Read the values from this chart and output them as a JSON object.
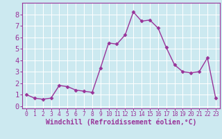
{
  "x": [
    0,
    1,
    2,
    3,
    4,
    5,
    6,
    7,
    8,
    9,
    10,
    11,
    12,
    13,
    14,
    15,
    16,
    17,
    18,
    19,
    20,
    21,
    22,
    23
  ],
  "y": [
    1.0,
    0.7,
    0.6,
    0.7,
    1.8,
    1.7,
    1.4,
    1.3,
    1.2,
    3.3,
    5.5,
    5.4,
    6.2,
    8.2,
    7.4,
    7.5,
    6.8,
    5.1,
    3.6,
    3.0,
    2.9,
    3.0,
    4.2,
    0.7
  ],
  "line_color": "#993399",
  "marker": "D",
  "marker_size": 2.5,
  "line_width": 1.0,
  "xlabel": "Windchill (Refroidissement éolien,°C)",
  "xlim": [
    -0.5,
    23.5
  ],
  "ylim": [
    -0.2,
    9.0
  ],
  "yticks": [
    0,
    1,
    2,
    3,
    4,
    5,
    6,
    7,
    8
  ],
  "xticks": [
    0,
    1,
    2,
    3,
    4,
    5,
    6,
    7,
    8,
    9,
    10,
    11,
    12,
    13,
    14,
    15,
    16,
    17,
    18,
    19,
    20,
    21,
    22,
    23
  ],
  "bg_color": "#cce9f0",
  "grid_color": "#ffffff",
  "tick_color": "#993399",
  "label_color": "#993399",
  "spine_color": "#993399",
  "xlabel_fontsize": 7.0,
  "ytick_fontsize": 7.5,
  "xtick_fontsize": 5.8,
  "xlabel_fontweight": "bold"
}
